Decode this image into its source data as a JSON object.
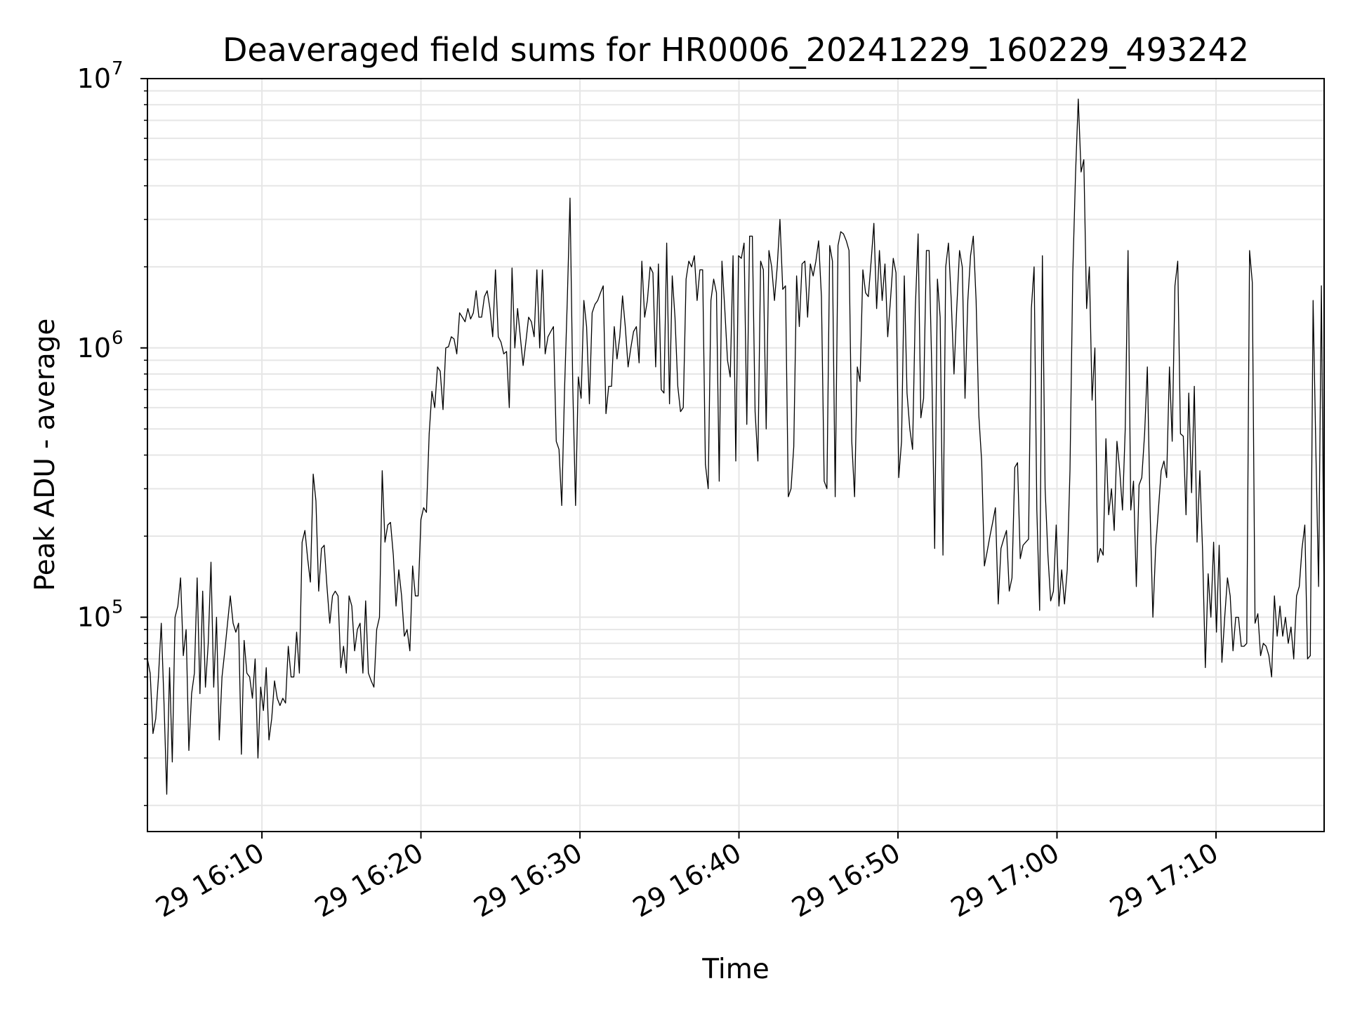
{
  "chart_data": {
    "type": "line",
    "title": "Deaveraged field sums for HR0006_20241229_160229_493242",
    "xlabel": "Time",
    "ylabel": "Peak ADU - average",
    "x_scale": "time",
    "y_scale": "log",
    "grid": true,
    "legend": "none",
    "xlim": [
      "2024-12-29 16:02:48",
      "2024-12-29 17:16:48"
    ],
    "ylim": [
      16000,
      10000000
    ],
    "x_ticks": [
      "2024-12-29 16:10",
      "2024-12-29 16:20",
      "2024-12-29 16:30",
      "2024-12-29 16:40",
      "2024-12-29 16:50",
      "2024-12-29 17:00",
      "2024-12-29 17:10"
    ],
    "x_tick_labels": [
      "29 16:10",
      "29 16:20",
      "29 16:30",
      "29 16:40",
      "29 16:50",
      "29 17:00",
      "29 17:10"
    ],
    "y_ticks": [
      100000,
      1000000,
      10000000
    ],
    "y_tick_labels": [
      {
        "base": "10",
        "exp": "5"
      },
      {
        "base": "10",
        "exp": "6"
      },
      {
        "base": "10",
        "exp": "7"
      }
    ],
    "line_color": "#000000",
    "grid_color": "#e6e6e6",
    "series": [
      {
        "x_start": "2024-12-29 16:02:48",
        "x_end": "2024-12-29 17:16:48",
        "values": [
          70000,
          62000,
          37000,
          42000,
          60000,
          95000,
          48000,
          22000,
          65000,
          29000,
          100000,
          110000,
          140000,
          72000,
          90000,
          32000,
          52000,
          62000,
          140000,
          52000,
          125000,
          55000,
          80000,
          160000,
          55000,
          100000,
          35000,
          60000,
          75000,
          95000,
          120000,
          95000,
          88000,
          95000,
          31000,
          82000,
          62000,
          60000,
          50000,
          70000,
          30000,
          55000,
          45000,
          65000,
          35000,
          42000,
          58000,
          50000,
          47000,
          50000,
          48000,
          78000,
          60000,
          60000,
          88000,
          62000,
          190000,
          210000,
          165000,
          135000,
          340000,
          270000,
          125000,
          180000,
          185000,
          130000,
          95000,
          120000,
          125000,
          120000,
          65000,
          78000,
          62000,
          120000,
          110000,
          75000,
          90000,
          95000,
          62000,
          115000,
          62000,
          58000,
          55000,
          90000,
          100000,
          350000,
          190000,
          220000,
          225000,
          170000,
          110000,
          150000,
          120000,
          85000,
          90000,
          75000,
          155000,
          120000,
          120000,
          230000,
          255000,
          245000,
          480000,
          690000,
          600000,
          850000,
          820000,
          590000,
          1000000,
          1010000,
          1100000,
          1080000,
          950000,
          1350000,
          1300000,
          1250000,
          1400000,
          1280000,
          1350000,
          1630000,
          1300000,
          1300000,
          1550000,
          1630000,
          1400000,
          1100000,
          1950000,
          1100000,
          1050000,
          950000,
          970000,
          600000,
          1980000,
          1000000,
          1400000,
          1100000,
          860000,
          1050000,
          1300000,
          1250000,
          1100000,
          1950000,
          1000000,
          1950000,
          950000,
          1100000,
          1150000,
          1200000,
          450000,
          420000,
          260000,
          700000,
          1500000,
          3600000,
          700000,
          260000,
          780000,
          650000,
          1500000,
          1200000,
          620000,
          1350000,
          1450000,
          1500000,
          1600000,
          1700000,
          570000,
          720000,
          720000,
          1200000,
          910000,
          1100000,
          1560000,
          1200000,
          850000,
          1000000,
          1150000,
          1200000,
          880000,
          2100000,
          1300000,
          1500000,
          2000000,
          1900000,
          850000,
          2050000,
          700000,
          680000,
          2450000,
          620000,
          1850000,
          1300000,
          720000,
          580000,
          600000,
          1800000,
          2100000,
          2000000,
          2200000,
          1500000,
          1950000,
          1950000,
          370000,
          300000,
          1500000,
          1800000,
          1600000,
          320000,
          2100000,
          1400000,
          900000,
          780000,
          2200000,
          380000,
          2200000,
          2150000,
          2450000,
          520000,
          2600000,
          2600000,
          580000,
          380000,
          2100000,
          1950000,
          500000,
          2300000,
          2000000,
          1500000,
          2000000,
          3000000,
          1650000,
          1700000,
          280000,
          300000,
          430000,
          1850000,
          1200000,
          2050000,
          2100000,
          1300000,
          2050000,
          1850000,
          2100000,
          2500000,
          1550000,
          320000,
          300000,
          2400000,
          2100000,
          280000,
          2400000,
          2700000,
          2650000,
          2500000,
          2300000,
          450000,
          280000,
          850000,
          750000,
          1950000,
          1600000,
          1550000,
          2100000,
          2900000,
          1400000,
          2300000,
          1500000,
          2050000,
          1100000,
          1500000,
          2150000,
          1900000,
          330000,
          450000,
          1850000,
          680000,
          500000,
          420000,
          1400000,
          2650000,
          550000,
          650000,
          2300000,
          2300000,
          800000,
          180000,
          1800000,
          1300000,
          170000,
          2000000,
          2450000,
          1500000,
          800000,
          1400000,
          2300000,
          2000000,
          650000,
          1500000,
          2200000,
          2600000,
          1500000,
          560000,
          380000,
          155000,
          175000,
          200000,
          225000,
          255000,
          112000,
          180000,
          195000,
          210000,
          125000,
          140000,
          360000,
          375000,
          165000,
          185000,
          190000,
          195000,
          1400000,
          2000000,
          250000,
          106000,
          2200000,
          300000,
          170000,
          115000,
          125000,
          220000,
          110000,
          150000,
          112000,
          150000,
          350000,
          1900000,
          4400000,
          8400000,
          4500000,
          5000000,
          1400000,
          2000000,
          640000,
          1000000,
          160000,
          180000,
          170000,
          460000,
          240000,
          300000,
          210000,
          450000,
          350000,
          250000,
          500000,
          2300000,
          250000,
          320000,
          130000,
          310000,
          330000,
          480000,
          850000,
          250000,
          100000,
          180000,
          250000,
          350000,
          380000,
          330000,
          850000,
          450000,
          1700000,
          2100000,
          480000,
          470000,
          240000,
          680000,
          290000,
          720000,
          190000,
          350000,
          175000,
          65000,
          145000,
          100000,
          190000,
          88000,
          185000,
          68000,
          100000,
          140000,
          120000,
          75000,
          100000,
          100000,
          78000,
          78000,
          80000,
          2300000,
          1750000,
          95000,
          103000,
          72000,
          80000,
          78000,
          72000,
          60000,
          120000,
          85000,
          110000,
          85000,
          100000,
          80000,
          92000,
          70000,
          120000,
          130000,
          180000,
          220000,
          70000,
          72000,
          1500000,
          420000,
          130000,
          1700000,
          110000
        ]
      }
    ]
  }
}
